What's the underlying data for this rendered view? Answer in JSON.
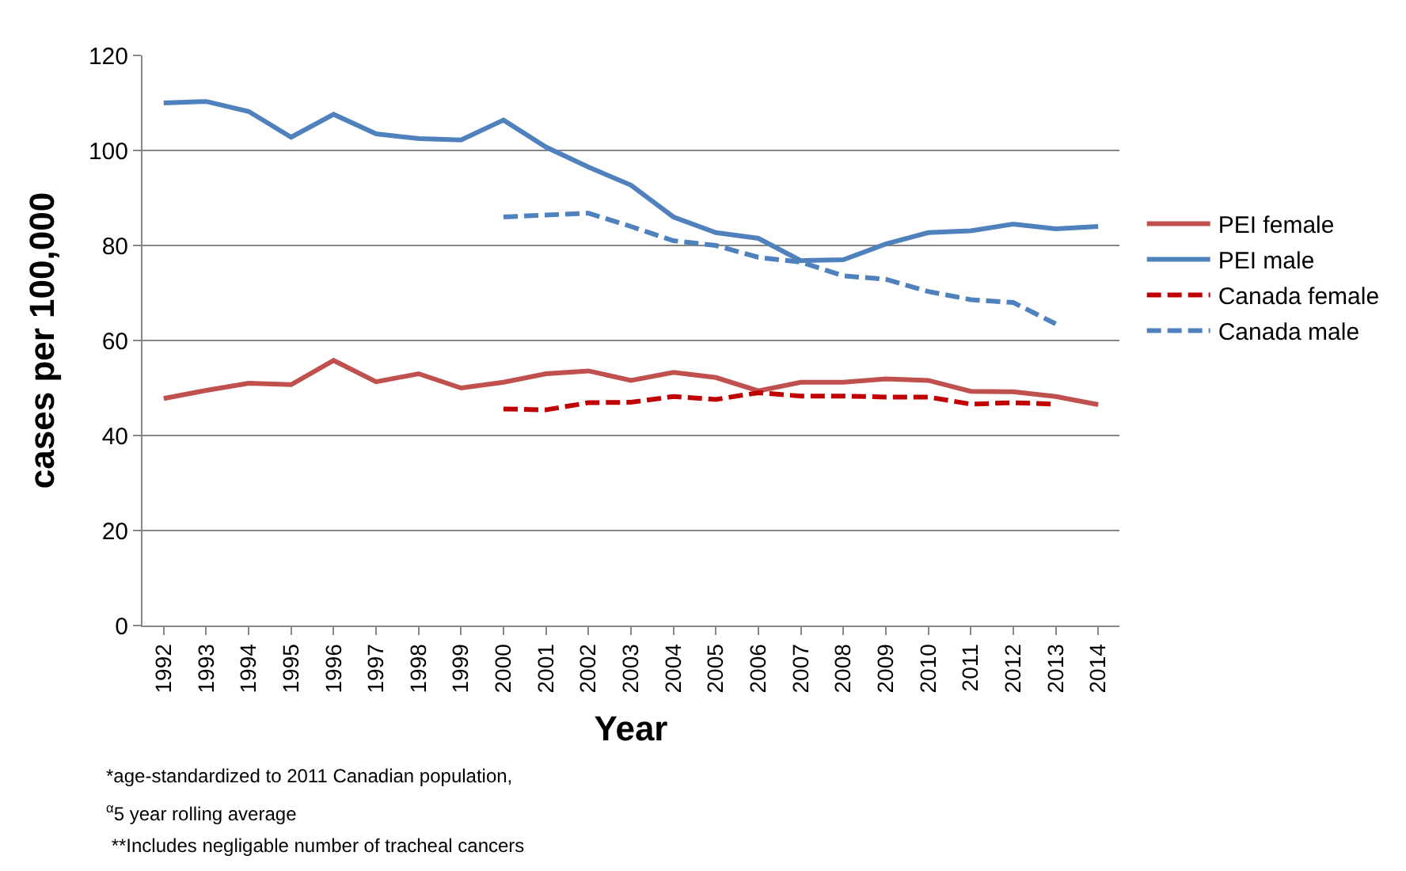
{
  "chart_data": {
    "type": "line",
    "xlabel": "Year",
    "ylabel": "cases per 100,000",
    "categories": [
      "1992",
      "1993",
      "1994",
      "1995",
      "1996",
      "1997",
      "1998",
      "1999",
      "2000",
      "2001",
      "2002",
      "2003",
      "2004",
      "2005",
      "2006",
      "2007",
      "2008",
      "2009",
      "2010",
      "2011",
      "2012",
      "2013",
      "2014"
    ],
    "series": [
      {
        "name": "PEI female",
        "color": "#c0504d",
        "line_style": "solid",
        "values": [
          47.8,
          49.5,
          51,
          50.7,
          55.8,
          51.3,
          53,
          50,
          51.2,
          53,
          53.6,
          51.6,
          53.3,
          52.2,
          49.4,
          51.2,
          51.2,
          51.9,
          51.6,
          49.3,
          49.2,
          48.2,
          46.5
        ]
      },
      {
        "name": "PEI male",
        "color": "#4f81bd",
        "line_style": "solid",
        "values": [
          110,
          110.3,
          108.2,
          102.8,
          107.6,
          103.5,
          102.5,
          102.2,
          106.4,
          100.7,
          96.5,
          92.7,
          86,
          82.7,
          81.5,
          76.8,
          77,
          80.3,
          82.7,
          83.1,
          84.5,
          83.5,
          84
        ]
      },
      {
        "name": "Canada female",
        "color": "#c00000",
        "line_style": "dashed",
        "values": [
          null,
          null,
          null,
          null,
          null,
          null,
          null,
          null,
          45.6,
          45.4,
          46.9,
          47,
          48.2,
          47.6,
          49,
          48.3,
          48.3,
          48.1,
          48.1,
          46.6,
          46.9,
          46.6,
          null
        ]
      },
      {
        "name": "Canada male",
        "color": "#4f81bd",
        "line_style": "dashed",
        "values": [
          null,
          null,
          null,
          null,
          null,
          null,
          null,
          null,
          86,
          86.4,
          86.8,
          84,
          81,
          80,
          77.5,
          76.5,
          73.6,
          72.9,
          70.3,
          68.6,
          68,
          63.5,
          null
        ]
      }
    ],
    "ylim": [
      0,
      120
    ],
    "yticks": [
      0,
      20,
      40,
      60,
      80,
      100,
      120
    ],
    "grid": "y",
    "legend": "right",
    "marker": "none",
    "annotations": [
      "*age-standardized to 2011 Canadian population,",
      "$^{α}$5 year rolling average",
      " **Includes negligable number of tracheal cancers"
    ]
  }
}
